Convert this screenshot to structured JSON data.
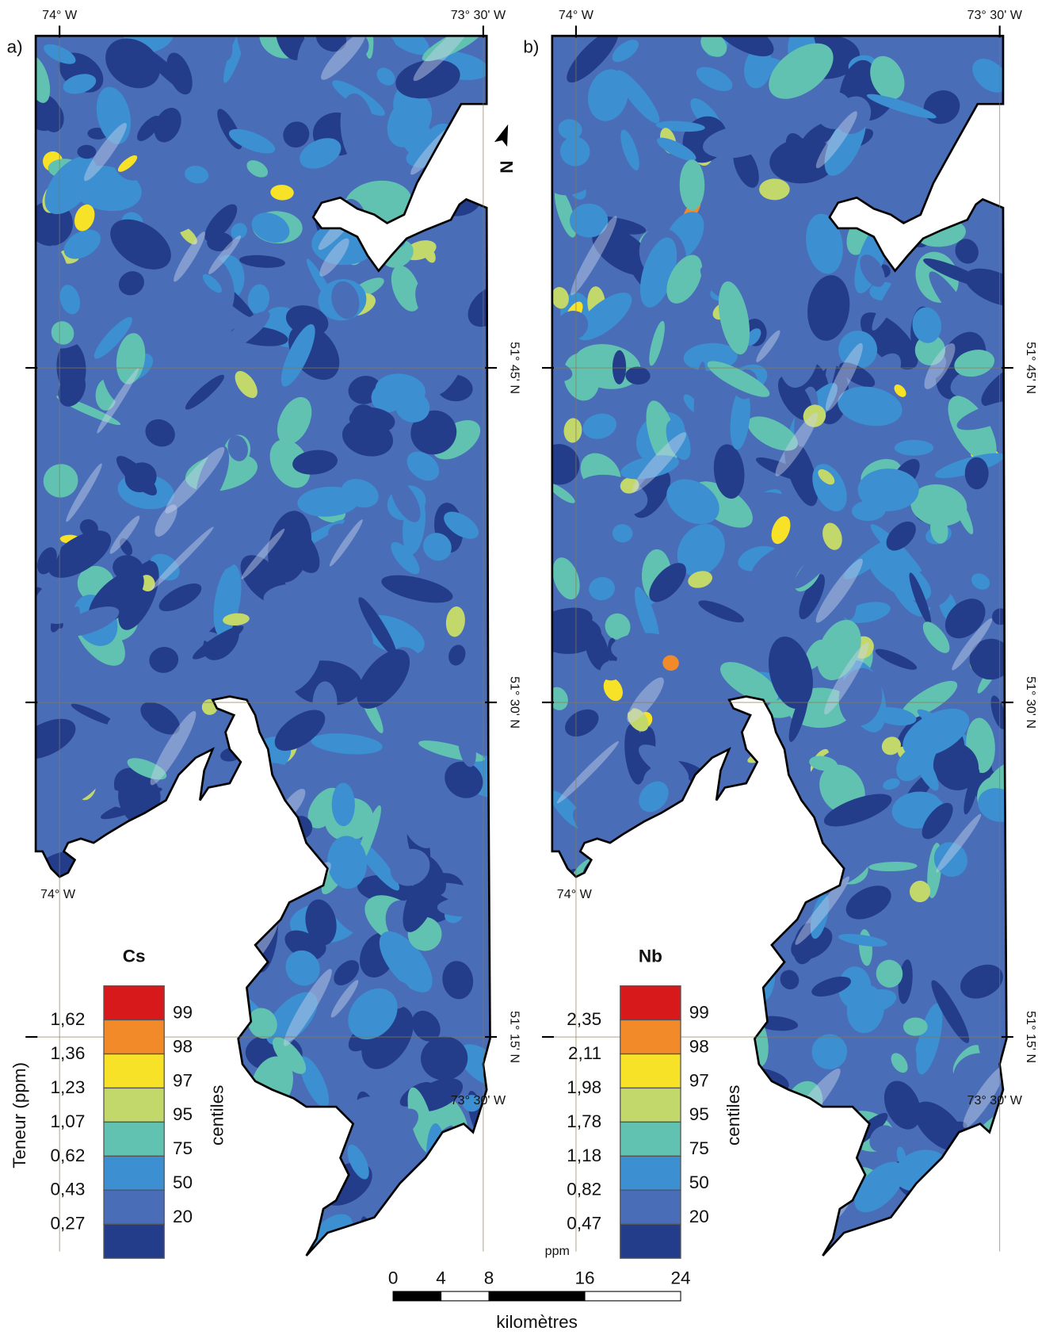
{
  "panels": [
    {
      "label": "a)",
      "top_left": "74° W",
      "top_right": "73° 30' W",
      "bottom_left": "74° W",
      "bottom_right": "73° 30' W",
      "lat_labels": [
        "51° 45' N",
        "51° 30' N",
        "51° 15' N"
      ],
      "legend": {
        "title": "Cs",
        "side_label": "Teneur (ppm)",
        "thresholds": [
          "1,62",
          "1,36",
          "1,23",
          "1,07",
          "0,62",
          "0,43",
          "0,27"
        ],
        "centiles": [
          99,
          98,
          97,
          95,
          75,
          50,
          20
        ],
        "centiles_label": "centiles",
        "colors": [
          "#d7191c",
          "#f28a2a",
          "#f7e228",
          "#c3d86b",
          "#62c2b1",
          "#3c8fd0",
          "#4a6db8",
          "#233d8a"
        ]
      }
    },
    {
      "label": "b)",
      "top_left": "74° W",
      "top_right": "73° 30' W",
      "bottom_left": "74° W",
      "bottom_right": "73° 30' W",
      "lat_labels": [
        "51° 45' N",
        "51° 30' N",
        "51° 15' N"
      ],
      "legend": {
        "title": "Nb",
        "unit_label": "ppm",
        "thresholds": [
          "2,35",
          "2,11",
          "1,98",
          "1,78",
          "1,18",
          "0,82",
          "0,47"
        ],
        "centiles": [
          99,
          98,
          97,
          95,
          75,
          50,
          20
        ],
        "centiles_label": "centiles",
        "colors": [
          "#d7191c",
          "#f28a2a",
          "#f7e228",
          "#c3d86b",
          "#62c2b1",
          "#3c8fd0",
          "#4a6db8",
          "#233d8a"
        ]
      }
    }
  ],
  "north": "N",
  "scale": {
    "ticks": [
      0,
      4,
      8,
      16,
      24
    ],
    "unit": "kilomètres"
  }
}
